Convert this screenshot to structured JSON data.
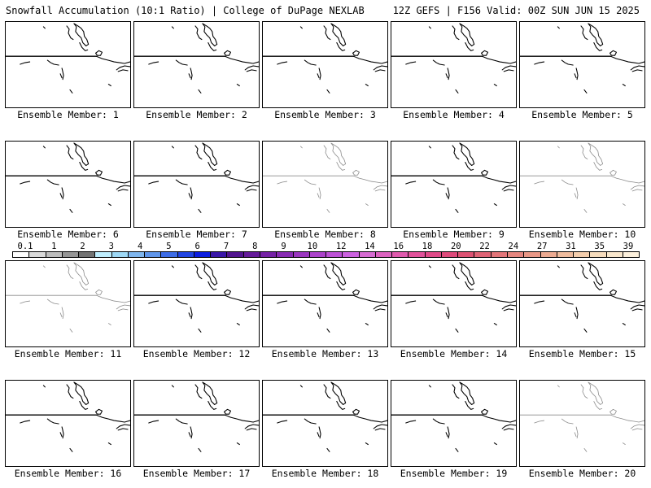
{
  "header": {
    "left": "Snowfall Accumulation (10:1 Ratio) | College of DuPage NEXLAB",
    "right": "12Z GEFS | F156 Valid: 00Z SUN JUN 15 2025"
  },
  "members": [
    {
      "label": "Ensemble Member: 1",
      "faint": false
    },
    {
      "label": "Ensemble Member: 2",
      "faint": false
    },
    {
      "label": "Ensemble Member: 3",
      "faint": false
    },
    {
      "label": "Ensemble Member: 4",
      "faint": false
    },
    {
      "label": "Ensemble Member: 5",
      "faint": false
    },
    {
      "label": "Ensemble Member: 6",
      "faint": false
    },
    {
      "label": "Ensemble Member: 7",
      "faint": false
    },
    {
      "label": "Ensemble Member: 8",
      "faint": true
    },
    {
      "label": "Ensemble Member: 9",
      "faint": false
    },
    {
      "label": "Ensemble Member: 10",
      "faint": true
    },
    {
      "label": "Ensemble Member: 11",
      "faint": true
    },
    {
      "label": "Ensemble Member: 12",
      "faint": false
    },
    {
      "label": "Ensemble Member: 13",
      "faint": false
    },
    {
      "label": "Ensemble Member: 14",
      "faint": false
    },
    {
      "label": "Ensemble Member: 15",
      "faint": false
    },
    {
      "label": "Ensemble Member: 16",
      "faint": false
    },
    {
      "label": "Ensemble Member: 17",
      "faint": false
    },
    {
      "label": "Ensemble Member: 18",
      "faint": false
    },
    {
      "label": "Ensemble Member: 19",
      "faint": false
    },
    {
      "label": "Ensemble Member: 20",
      "faint": true
    }
  ],
  "colorbar": {
    "colors": [
      "#ffffff",
      "#d9d9d9",
      "#bdbdbd",
      "#969696",
      "#737373",
      "#bfeefe",
      "#9ed8f5",
      "#7fb6ee",
      "#5f95ea",
      "#3d6ce6",
      "#2245e2",
      "#0d1ee0",
      "#3a17a8",
      "#52158f",
      "#651b9a",
      "#7623a6",
      "#882bb3",
      "#9a36bf",
      "#ac43cb",
      "#bd52d6",
      "#cc62e0",
      "#d66cd2",
      "#dc63c0",
      "#e05aae",
      "#e1529b",
      "#e04b89",
      "#de4a7b",
      "#dd5374",
      "#df6476",
      "#e27579",
      "#e5867f",
      "#e89786",
      "#ecaa91",
      "#efbc9e",
      "#f3cdad",
      "#f6dcbd",
      "#f9e7cd",
      "#fcf0dc"
    ],
    "tick_labels": [
      "0.1",
      "1",
      "2",
      "3",
      "4",
      "5",
      "6",
      "7",
      "8",
      "9",
      "10",
      "12",
      "14",
      "16",
      "18",
      "20",
      "22",
      "24",
      "27",
      "31",
      "35",
      "39"
    ],
    "tick_cells": [
      0,
      2,
      4,
      6,
      8,
      10,
      12,
      14,
      16,
      18,
      20,
      22,
      24,
      26,
      28,
      30,
      32,
      34,
      36,
      38,
      40,
      42
    ]
  }
}
